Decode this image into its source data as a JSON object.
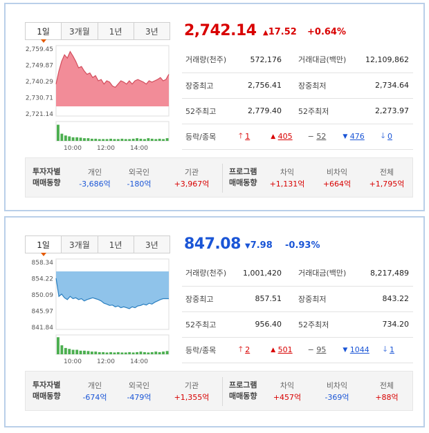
{
  "panels": [
    {
      "tabs": [
        "1일",
        "3개월",
        "1년",
        "3년"
      ],
      "price": "2,742.14",
      "change_arrow": "▲",
      "change_value": "17.52",
      "change_pct": "+0.64%",
      "trend_color": "#d80000",
      "stats": {
        "volume_label": "거래량(천주)",
        "volume": "572,176",
        "amount_label": "거래대금(백만)",
        "amount": "12,109,862",
        "high_label": "장중최고",
        "high": "2,756.41",
        "low_label": "장중최저",
        "low": "2,734.64",
        "w52_high_label": "52주최고",
        "w52_high": "2,779.40",
        "w52_low_label": "52주최저",
        "w52_low": "2,273.97",
        "updown_label": "등락/종목",
        "upper_limit": "1",
        "rise": "405",
        "flat": "52",
        "fall": "476",
        "lower_limit": "0"
      },
      "chart": {
        "y_ticks": [
          "2,759.45",
          "2,749.87",
          "2,740.29",
          "2,730.71",
          "2,721.14"
        ],
        "x_ticks": [
          "10:00",
          "12:00",
          "14:00"
        ],
        "fill_color": "#f28c98",
        "line_color": "#d24d5c"
      },
      "investor": {
        "title1": "투자자별",
        "title2": "매매동향",
        "individual_label": "개인",
        "individual": "-3,686억",
        "foreign_label": "외국인",
        "foreign": "-180억",
        "institution_label": "기관",
        "institution": "+3,967억",
        "program_title1": "프로그램",
        "program_title2": "매매동향",
        "arb_label": "차익",
        "arb": "+1,131억",
        "nonarb_label": "비차익",
        "nonarb": "+664억",
        "total_label": "전체",
        "total": "+1,795억"
      }
    },
    {
      "tabs": [
        "1일",
        "3개월",
        "1년",
        "3년"
      ],
      "price": "847.08",
      "change_arrow": "▼",
      "change_value": "7.98",
      "change_pct": "-0.93%",
      "trend_color": "#1a55d6",
      "stats": {
        "volume_label": "거래량(천주)",
        "volume": "1,001,420",
        "amount_label": "거래대금(백만)",
        "amount": "8,217,489",
        "high_label": "장중최고",
        "high": "857.51",
        "low_label": "장중최저",
        "low": "843.22",
        "w52_high_label": "52주최고",
        "w52_high": "956.40",
        "w52_low_label": "52주최저",
        "w52_low": "734.20",
        "updown_label": "등락/종목",
        "upper_limit": "2",
        "rise": "501",
        "flat": "95",
        "fall": "1044",
        "lower_limit": "1"
      },
      "chart": {
        "y_ticks": [
          "858.34",
          "854.22",
          "850.09",
          "845.97",
          "841.84"
        ],
        "x_ticks": [
          "10:00",
          "12:00",
          "14:00"
        ],
        "fill_color": "#8fc3ea",
        "line_color": "#2a7fc0"
      },
      "investor": {
        "title1": "투자자별",
        "title2": "매매동향",
        "individual_label": "개인",
        "individual": "-674억",
        "foreign_label": "외국인",
        "foreign": "-479억",
        "institution_label": "기관",
        "institution": "+1,355억",
        "program_title1": "프로그램",
        "program_title2": "매매동향",
        "arb_label": "차익",
        "arb": "+457억",
        "nonarb_label": "비차익",
        "nonarb": "-369억",
        "total_label": "전체",
        "total": "+88억"
      }
    }
  ]
}
